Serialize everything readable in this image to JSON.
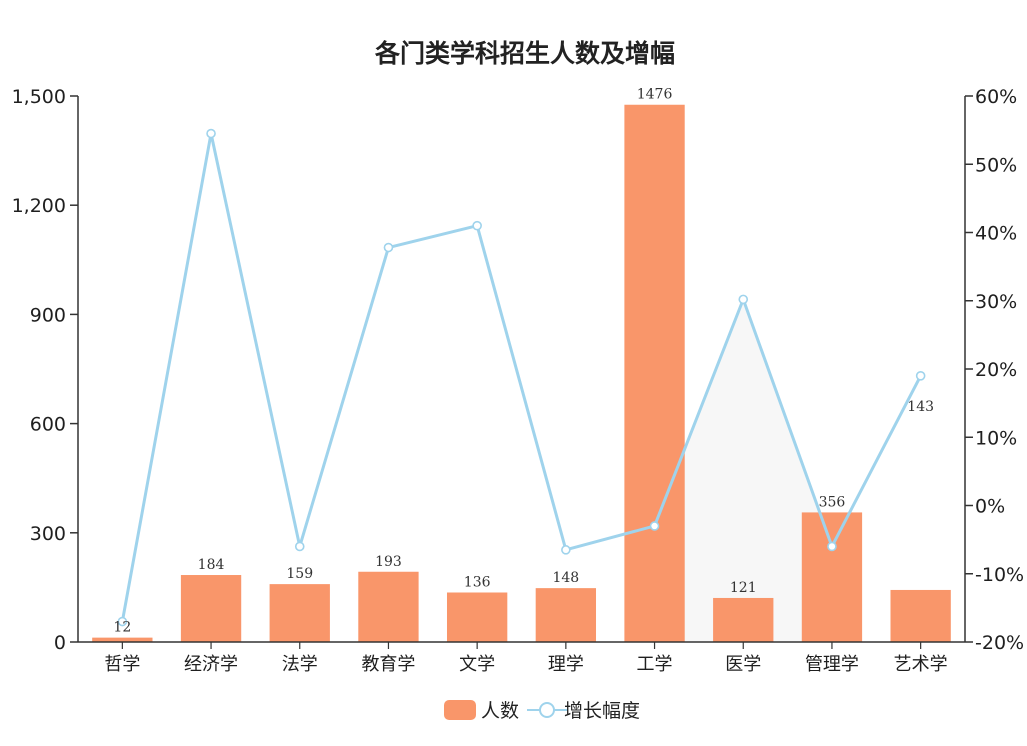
{
  "chart_data": {
    "type": "bar",
    "title": "各门类学科招生人数及增幅",
    "categories": [
      "哲学",
      "经济学",
      "法学",
      "教育学",
      "文学",
      "理学",
      "工学",
      "医学",
      "管理学",
      "艺术学"
    ],
    "series": [
      {
        "name": "人数",
        "type": "bar",
        "axis": "left",
        "color": "#f9966a",
        "values": [
          12,
          184,
          159,
          193,
          136,
          148,
          1476,
          121,
          356,
          143
        ],
        "labels": [
          "12",
          "184",
          "159",
          "193",
          "136",
          "148",
          "1476",
          "121",
          "356",
          "143"
        ]
      },
      {
        "name": "增长幅度",
        "type": "line",
        "axis": "right",
        "color": "#9fd3ec",
        "values": [
          -17,
          54.5,
          -6,
          37.8,
          41,
          -6.5,
          -3,
          30.2,
          -6,
          19
        ]
      }
    ],
    "left_axis": {
      "ylim": [
        0,
        1500
      ],
      "ticks": [
        0,
        300,
        600,
        900,
        1200,
        1500
      ],
      "tick_labels": [
        "0",
        "300",
        "600",
        "900",
        "1,200",
        "1,500"
      ]
    },
    "right_axis": {
      "ylim": [
        -20,
        60
      ],
      "ticks": [
        -20,
        -10,
        0,
        10,
        20,
        30,
        40,
        50,
        60
      ],
      "tick_labels": [
        "-20%",
        "-10%",
        "0%",
        "10%",
        "20%",
        "30%",
        "40%",
        "50%",
        "60%"
      ]
    },
    "xlabel": "",
    "ylabel": "",
    "grid": false,
    "legend": {
      "position": "bottom-center",
      "items": [
        "人数",
        "增长幅度"
      ]
    }
  }
}
